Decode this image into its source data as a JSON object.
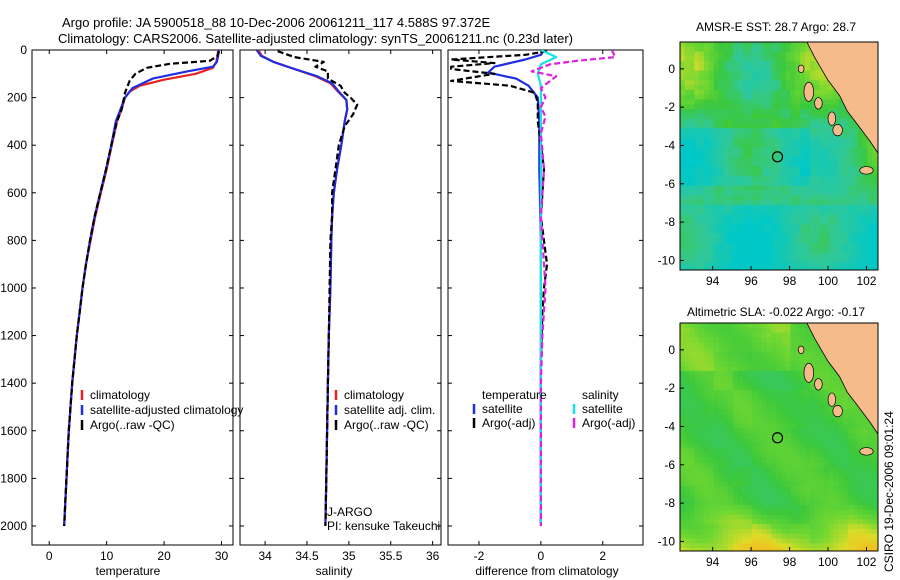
{
  "header": {
    "line1": "Argo profile: JA 5900518_88 10-Dec-2006 20061211_117 4.588S 97.372E",
    "line2": "Climatology: CARS2006. Satellite-adjusted climatology: synTS_20061211.nc (0.23d later)"
  },
  "footer": {
    "stamp": "CSIRO 19-Dec-2006 09:01:24"
  },
  "colors": {
    "climatology": "#e8231f",
    "satellite": "#1f2ee0",
    "argo": "#000000",
    "sat_salinity": "#19e1e8",
    "argo_salinity_adj": "#e020e0",
    "land": "#f5bb8a"
  },
  "chart_data": [
    {
      "type": "line",
      "id": "temperature",
      "xlabel": "temperature",
      "ylabel": "",
      "xlim": [
        -3,
        32
      ],
      "ylim": [
        2080,
        0
      ],
      "xticks": [
        "0",
        "10",
        "20",
        "30"
      ],
      "yticks": [
        "0",
        "200",
        "400",
        "600",
        "800",
        "1000",
        "1200",
        "1400",
        "1600",
        "1800",
        "2000"
      ],
      "series": [
        {
          "name": "climatology",
          "color": "#e8231f",
          "dash": "",
          "points": [
            [
              29.4,
              0
            ],
            [
              29.3,
              25
            ],
            [
              29.1,
              50
            ],
            [
              28.5,
              75
            ],
            [
              25.5,
              100
            ],
            [
              20,
              125
            ],
            [
              15.8,
              150
            ],
            [
              14,
              175
            ],
            [
              13.2,
              200
            ],
            [
              12.6,
              250
            ],
            [
              11.8,
              300
            ],
            [
              10.9,
              400
            ],
            [
              10.0,
              500
            ],
            [
              9.0,
              600
            ],
            [
              8.0,
              700
            ],
            [
              7.2,
              800
            ],
            [
              6.4,
              900
            ],
            [
              5.8,
              1000
            ],
            [
              5.3,
              1100
            ],
            [
              4.8,
              1200
            ],
            [
              4.4,
              1300
            ],
            [
              4.0,
              1400
            ],
            [
              3.7,
              1500
            ],
            [
              3.4,
              1600
            ],
            [
              3.2,
              1700
            ],
            [
              3.0,
              1800
            ],
            [
              2.8,
              1900
            ],
            [
              2.6,
              2000
            ]
          ]
        },
        {
          "name": "satellite-adjusted climatology",
          "color": "#1f2ee0",
          "dash": "",
          "points": [
            [
              29.5,
              0
            ],
            [
              29.4,
              25
            ],
            [
              29.2,
              50
            ],
            [
              28.5,
              70
            ],
            [
              24,
              90
            ],
            [
              18,
              120
            ],
            [
              14.5,
              160
            ],
            [
              13.2,
              200
            ],
            [
              12.4,
              250
            ],
            [
              11.6,
              300
            ],
            [
              10.8,
              400
            ],
            [
              9.9,
              500
            ],
            [
              8.9,
              600
            ],
            [
              7.9,
              700
            ],
            [
              7.1,
              800
            ],
            [
              6.4,
              900
            ],
            [
              5.8,
              1000
            ],
            [
              5.3,
              1100
            ],
            [
              4.8,
              1200
            ],
            [
              4.4,
              1300
            ],
            [
              4.0,
              1400
            ],
            [
              3.7,
              1500
            ],
            [
              3.4,
              1600
            ],
            [
              3.2,
              1700
            ],
            [
              3.0,
              1800
            ],
            [
              2.8,
              1900
            ],
            [
              2.6,
              2000
            ]
          ]
        },
        {
          "name": "Argo(..raw -QC)",
          "color": "#000000",
          "dash": "6,3",
          "points": [
            [
              29.6,
              5
            ],
            [
              29.3,
              25
            ],
            [
              28,
              45
            ],
            [
              25.5,
              50
            ],
            [
              21,
              58
            ],
            [
              17,
              75
            ],
            [
              15,
              100
            ],
            [
              14,
              130
            ],
            [
              13.2,
              180
            ],
            [
              12.6,
              250
            ],
            [
              11.8,
              300
            ],
            [
              10.8,
              400
            ],
            [
              9.9,
              500
            ],
            [
              8.9,
              600
            ],
            [
              7.9,
              700
            ],
            [
              7.1,
              800
            ],
            [
              6.4,
              900
            ],
            [
              5.8,
              1000
            ],
            [
              5.3,
              1100
            ],
            [
              4.8,
              1200
            ],
            [
              4.4,
              1300
            ],
            [
              4.0,
              1400
            ],
            [
              3.7,
              1500
            ],
            [
              3.4,
              1600
            ],
            [
              3.2,
              1700
            ],
            [
              3.0,
              1800
            ],
            [
              2.8,
              1900
            ],
            [
              2.6,
              2000
            ]
          ]
        }
      ],
      "legend": [
        {
          "label": "climatology",
          "color": "#e8231f"
        },
        {
          "label": "satellite-adjusted climatology",
          "color": "#1f2ee0"
        },
        {
          "label": "Argo(..raw -QC)",
          "color": "#000000"
        }
      ]
    },
    {
      "type": "line",
      "id": "salinity",
      "xlabel": "salinity",
      "xlim": [
        33.7,
        36.1
      ],
      "ylim": [
        2080,
        0
      ],
      "xticks": [
        "34",
        "34.5",
        "35",
        "35.5",
        "36"
      ],
      "series": [
        {
          "name": "climatology",
          "color": "#e8231f",
          "dash": "",
          "points": [
            [
              33.92,
              0
            ],
            [
              33.96,
              25
            ],
            [
              34.1,
              50
            ],
            [
              34.35,
              80
            ],
            [
              34.6,
              110
            ],
            [
              34.78,
              140
            ],
            [
              34.87,
              175
            ],
            [
              34.97,
              210
            ],
            [
              34.98,
              250
            ],
            [
              34.95,
              300
            ],
            [
              34.91,
              400
            ],
            [
              34.86,
              500
            ],
            [
              34.82,
              600
            ],
            [
              34.8,
              700
            ],
            [
              34.79,
              800
            ],
            [
              34.78,
              1000
            ],
            [
              34.76,
              1200
            ],
            [
              34.75,
              1400
            ],
            [
              34.74,
              1600
            ],
            [
              34.73,
              1800
            ],
            [
              34.72,
              2000
            ]
          ]
        },
        {
          "name": "satellite adj. clim.",
          "color": "#1f2ee0",
          "dash": "",
          "points": [
            [
              33.9,
              0
            ],
            [
              33.95,
              25
            ],
            [
              34.1,
              50
            ],
            [
              34.35,
              80
            ],
            [
              34.62,
              110
            ],
            [
              34.8,
              140
            ],
            [
              34.88,
              175
            ],
            [
              34.97,
              210
            ],
            [
              34.98,
              250
            ],
            [
              34.95,
              300
            ],
            [
              34.91,
              400
            ],
            [
              34.86,
              500
            ],
            [
              34.82,
              600
            ],
            [
              34.8,
              700
            ],
            [
              34.79,
              800
            ],
            [
              34.78,
              1000
            ],
            [
              34.76,
              1200
            ],
            [
              34.75,
              1400
            ],
            [
              34.74,
              1600
            ],
            [
              34.73,
              1800
            ],
            [
              34.72,
              2000
            ]
          ]
        },
        {
          "name": "Argo(..raw -QC)",
          "color": "#000000",
          "dash": "6,3",
          "points": [
            [
              34.15,
              5
            ],
            [
              34.35,
              30
            ],
            [
              34.7,
              50
            ],
            [
              34.6,
              70
            ],
            [
              34.75,
              90
            ],
            [
              34.75,
              120
            ],
            [
              34.9,
              150
            ],
            [
              34.95,
              180
            ],
            [
              35.02,
              200
            ],
            [
              35.1,
              230
            ],
            [
              35.05,
              270
            ],
            [
              34.95,
              320
            ],
            [
              34.88,
              400
            ],
            [
              34.84,
              500
            ],
            [
              34.8,
              600
            ],
            [
              34.8,
              700
            ],
            [
              34.78,
              800
            ],
            [
              34.77,
              1000
            ],
            [
              34.76,
              1200
            ],
            [
              34.75,
              1400
            ],
            [
              34.74,
              1600
            ],
            [
              34.73,
              1800
            ],
            [
              34.72,
              2000
            ]
          ]
        }
      ],
      "legend": [
        {
          "label": "climatology",
          "color": "#e8231f"
        },
        {
          "label": "satellite adj. clim.",
          "color": "#1f2ee0"
        },
        {
          "label": "Argo(..raw -QC)",
          "color": "#000000"
        }
      ],
      "annotations": [
        "J-ARGO",
        "PI: kensuke Takeuchi"
      ]
    },
    {
      "type": "line",
      "id": "difference",
      "xlabel": "difference from climatology",
      "xlim": [
        -3,
        3.3
      ],
      "ylim": [
        2080,
        0
      ],
      "xticks": [
        "-2",
        "0",
        "2"
      ],
      "series": [
        {
          "name": "temperature satellite",
          "color": "#1f2ee0",
          "dash": "",
          "points": [
            [
              0.1,
              0
            ],
            [
              0,
              20
            ],
            [
              -0.5,
              40
            ],
            [
              -1.5,
              70
            ],
            [
              -1.7,
              95
            ],
            [
              -0.8,
              120
            ],
            [
              -0.4,
              150
            ],
            [
              -0.1,
              200
            ],
            [
              -0.05,
              300
            ],
            [
              -0.05,
              500
            ],
            [
              0,
              800
            ],
            [
              0,
              1000
            ],
            [
              0,
              1300
            ],
            [
              0,
              1600
            ],
            [
              0,
              2000
            ]
          ]
        },
        {
          "name": "temperature Argo(-adj)",
          "color": "#000000",
          "dash": "6,3",
          "points": [
            [
              0.2,
              5
            ],
            [
              -0.5,
              20
            ],
            [
              -2.9,
              40
            ],
            [
              -1.5,
              55
            ],
            [
              -2.9,
              70
            ],
            [
              -2.9,
              80
            ],
            [
              -1.5,
              100
            ],
            [
              -2.9,
              130
            ],
            [
              -1.0,
              150
            ],
            [
              -0.2,
              180
            ],
            [
              -0.1,
              220
            ],
            [
              -0.1,
              300
            ],
            [
              0.1,
              500
            ],
            [
              0,
              700
            ],
            [
              0.2,
              900
            ],
            [
              0.1,
              1000
            ],
            [
              0.05,
              1100
            ],
            [
              0,
              1300
            ],
            [
              0,
              1600
            ],
            [
              0,
              2000
            ]
          ]
        },
        {
          "name": "salinity satellite",
          "color": "#19e1e8",
          "dash": "",
          "points": [
            [
              0,
              0
            ],
            [
              0.5,
              30
            ],
            [
              0,
              60
            ],
            [
              -0.1,
              100
            ],
            [
              0,
              150
            ],
            [
              0,
              200
            ],
            [
              0,
              400
            ],
            [
              0,
              800
            ],
            [
              0,
              1200
            ],
            [
              0,
              1600
            ],
            [
              0,
              2000
            ]
          ]
        },
        {
          "name": "salinity Argo(-adj)",
          "color": "#e020e0",
          "dash": "6,3",
          "points": [
            [
              2.3,
              0
            ],
            [
              2.4,
              30
            ],
            [
              1.2,
              45
            ],
            [
              0.3,
              60
            ],
            [
              -0.3,
              90
            ],
            [
              0.5,
              110
            ],
            [
              0.3,
              130
            ],
            [
              0,
              160
            ],
            [
              0.15,
              200
            ],
            [
              0,
              240
            ],
            [
              0.15,
              280
            ],
            [
              0,
              350
            ],
            [
              0.1,
              500
            ],
            [
              0,
              700
            ],
            [
              0.1,
              900
            ],
            [
              0.15,
              1000
            ],
            [
              0.05,
              1200
            ],
            [
              0,
              1400
            ],
            [
              0,
              2000
            ]
          ]
        }
      ],
      "legend": [
        {
          "label": "temperature",
          "color": ""
        },
        {
          "label": "satellite",
          "color": "#1f2ee0"
        },
        {
          "label": "Argo(-adj)",
          "color": "#000000"
        },
        {
          "label": "salinity",
          "color": ""
        },
        {
          "label": "satellite",
          "color": "#19e1e8"
        },
        {
          "label": "Argo(-adj)",
          "color": "#e020e0"
        }
      ]
    },
    {
      "type": "heatmap",
      "id": "sst_map",
      "title": "AMSR-E SST: 28.7 Argo: 28.7",
      "xlim": [
        92.3,
        102.6
      ],
      "ylim": [
        -10.5,
        1.4
      ],
      "xticks": [
        "94",
        "96",
        "98",
        "100",
        "102"
      ],
      "yticks": [
        "0",
        "-2",
        "-4",
        "-6",
        "-8",
        "-10"
      ],
      "argo_position": {
        "lon": 97.372,
        "lat": -4.588
      }
    },
    {
      "type": "heatmap",
      "id": "sla_map",
      "title": "Altimetric SLA: -0.022 Argo: -0.17",
      "xlim": [
        92.3,
        102.6
      ],
      "ylim": [
        -10.5,
        1.4
      ],
      "xticks": [
        "94",
        "96",
        "98",
        "100",
        "102"
      ],
      "yticks": [
        "0",
        "-2",
        "-4",
        "-6",
        "-8",
        "-10"
      ],
      "argo_position": {
        "lon": 97.372,
        "lat": -4.588
      }
    }
  ]
}
